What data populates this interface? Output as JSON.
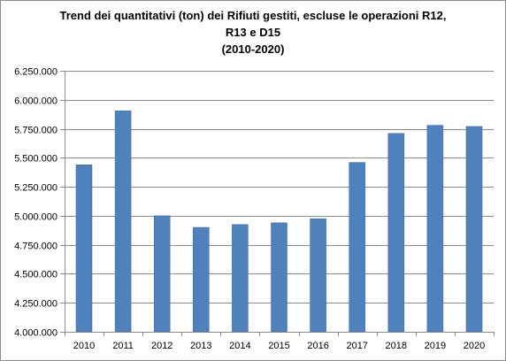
{
  "chart_data": {
    "type": "bar",
    "title_lines": [
      "Trend dei quantitativi (ton) dei Rifiuti gestiti, escluse le operazioni R12,",
      "R13 e D15",
      "(2010-2020)"
    ],
    "categories": [
      "2010",
      "2011",
      "2012",
      "2013",
      "2014",
      "2015",
      "2016",
      "2017",
      "2018",
      "2019",
      "2020"
    ],
    "values": [
      5440000,
      5905000,
      5000000,
      4900000,
      4925000,
      4940000,
      4975000,
      5460000,
      5710000,
      5780000,
      5770000
    ],
    "ylim": [
      4000000,
      6250000
    ],
    "yticks": [
      4000000,
      4250000,
      4500000,
      4750000,
      5000000,
      5250000,
      5500000,
      5750000,
      6000000,
      6250000
    ],
    "ytick_labels": [
      "4.000.000",
      "4.250.000",
      "4.500.000",
      "4.750.000",
      "5.000.000",
      "5.250.000",
      "5.500.000",
      "5.750.000",
      "6.000.000",
      "6.250.000"
    ],
    "grid": true,
    "legend": "none",
    "colors": {
      "bar": "#4f81bd",
      "bar_edge": "#3c6696",
      "grid": "#8c8c8c",
      "axis": "#8c8c8c"
    }
  }
}
